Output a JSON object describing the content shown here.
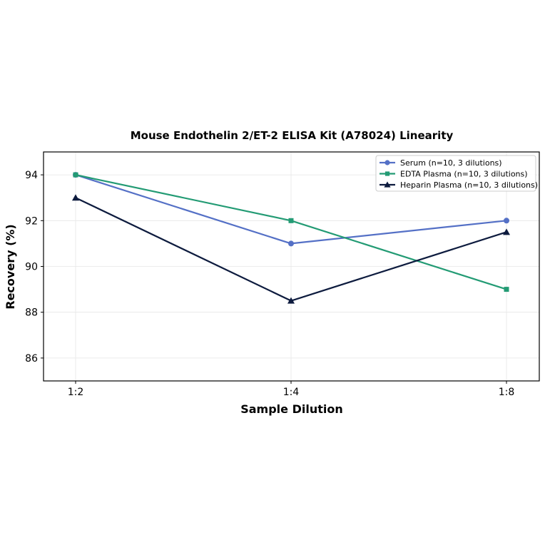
{
  "chart_data": {
    "type": "line",
    "title": "Mouse Endothelin 2/ET-2 ELISA Kit (A78024) Linearity",
    "xlabel": "Sample Dilution",
    "ylabel": "Recovery (%)",
    "categories": [
      "1:2",
      "1:4",
      "1:8"
    ],
    "ylim": [
      85,
      95
    ],
    "yticks": [
      86,
      88,
      90,
      92,
      94
    ],
    "grid": true,
    "legend_position": "top-right",
    "series": [
      {
        "name": "Serum (n=10, 3 dilutions)",
        "values": [
          94,
          91,
          92
        ],
        "color": "#5470c6",
        "marker": "circle"
      },
      {
        "name": "EDTA Plasma (n=10, 3 dilutions)",
        "values": [
          94,
          92,
          89
        ],
        "color": "#239b74",
        "marker": "square"
      },
      {
        "name": "Heparin Plasma (n=10, 3 dilutions)",
        "values": [
          93,
          88.5,
          91.5
        ],
        "color": "#0d1b3e",
        "marker": "triangle"
      }
    ]
  }
}
